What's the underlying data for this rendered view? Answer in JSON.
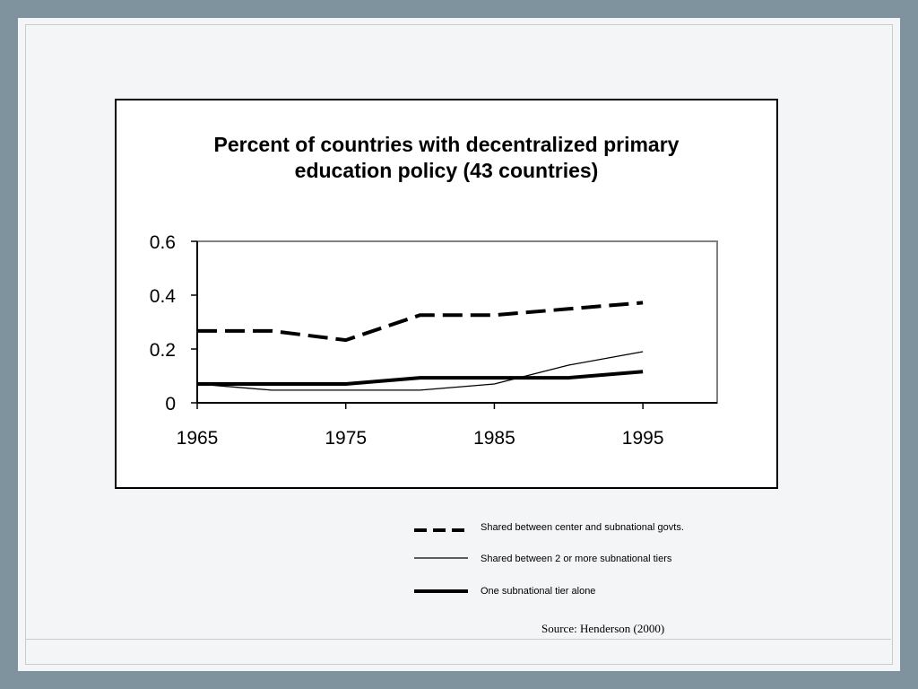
{
  "chart_data": {
    "type": "line",
    "title_lines": [
      "Percent of countries with decentralized primary",
      "education policy (43 countries)"
    ],
    "xlabel": "",
    "ylabel": "",
    "x_ticks": [
      "1965",
      "1975",
      "1985",
      "1995"
    ],
    "y_ticks": [
      "0",
      "0.2",
      "0.4",
      "0.6"
    ],
    "xlim": [
      1965,
      2000
    ],
    "ylim": [
      0,
      0.6
    ],
    "grid": false,
    "legend_position": "below",
    "series": [
      {
        "name": "Shared between center and subnational govts.",
        "style": "dashed-thick",
        "x": [
          1965,
          1970,
          1975,
          1980,
          1985,
          1990,
          1995
        ],
        "values": [
          0.267,
          0.267,
          0.233,
          0.326,
          0.326,
          0.349,
          0.372
        ]
      },
      {
        "name": "Shared between  2 or more subnational tiers",
        "style": "thin",
        "x": [
          1965,
          1970,
          1975,
          1980,
          1985,
          1990,
          1995
        ],
        "values": [
          0.07,
          0.047,
          0.047,
          0.047,
          0.07,
          0.14,
          0.19
        ]
      },
      {
        "name": "One subnational tier alone",
        "style": "solid-thick",
        "x": [
          1965,
          1970,
          1975,
          1980,
          1985,
          1990,
          1995
        ],
        "values": [
          0.07,
          0.07,
          0.07,
          0.093,
          0.093,
          0.093,
          0.116
        ]
      }
    ],
    "colors": {
      "lines": "#000000",
      "plot_border": "#808080",
      "background": "#ffffff"
    }
  },
  "source": "Source: Henderson (2000)"
}
